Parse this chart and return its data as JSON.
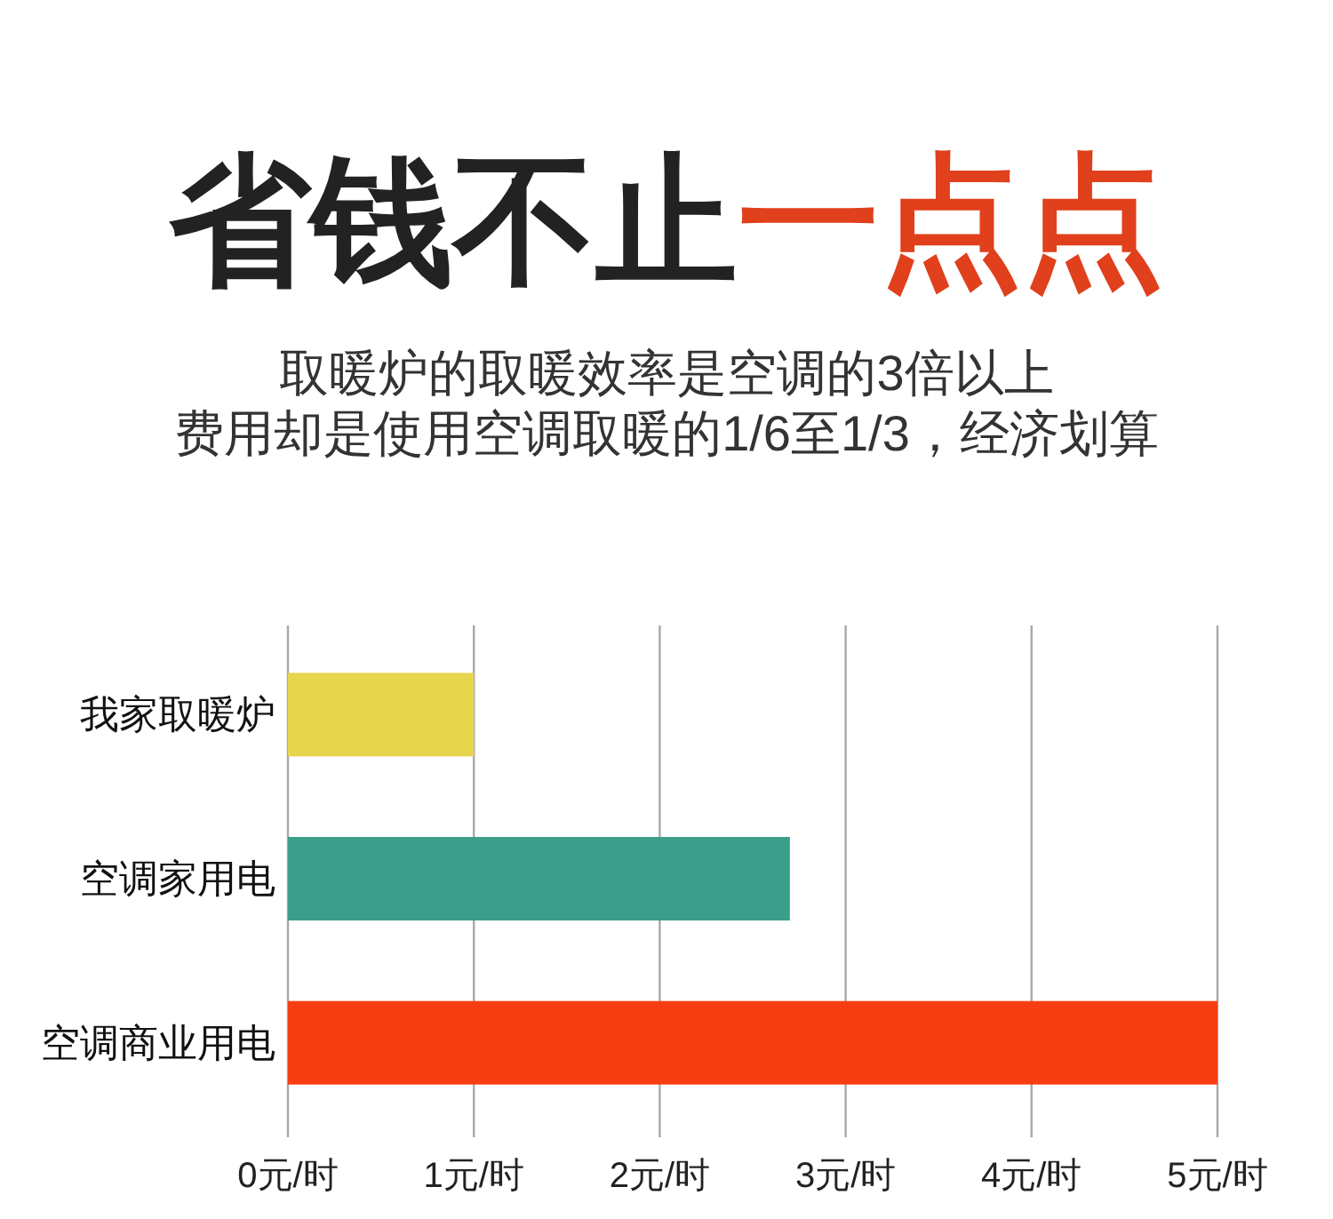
{
  "chart_data": {
    "type": "bar",
    "orientation": "horizontal",
    "title": "省钱不止一点点",
    "subtitle": "取暖炉的取暖效率是空调的3倍以上",
    "annotations": [
      "费用却是使用空调取暖的1/6至1/3，经济划算"
    ],
    "categories": [
      "我家取暖炉",
      "空调家用电",
      "空调商业用电"
    ],
    "values": [
      1,
      2.7,
      5
    ],
    "colors": [
      "#e8d54e",
      "#3a9e8b",
      "#f73e12"
    ],
    "xlim": [
      0,
      5
    ],
    "xticks": [
      {
        "value": 0,
        "label": "0元/时"
      },
      {
        "value": 1,
        "label": "1元/时"
      },
      {
        "value": 2,
        "label": "2元/时"
      },
      {
        "value": 3,
        "label": "3元/时"
      },
      {
        "value": 4,
        "label": "4元/时"
      },
      {
        "value": 5,
        "label": "5元/时"
      }
    ],
    "grid": "x"
  }
}
